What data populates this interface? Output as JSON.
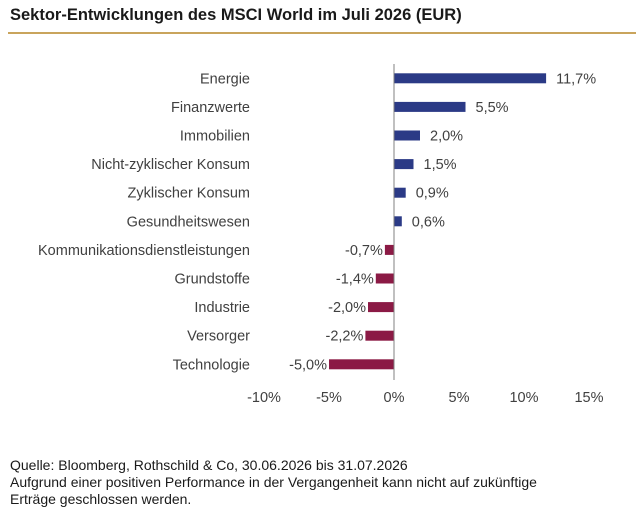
{
  "title": "Sektor-Entwicklungen des MSCI World im Juli 2026 (EUR)",
  "colors": {
    "positive": "#2B3A86",
    "negative": "#8B1A45",
    "title_rule": "#C9A45C",
    "axis": "#808080"
  },
  "chart_data": {
    "type": "bar",
    "orientation": "horizontal",
    "title": "Sektor-Entwicklungen des MSCI World im Juli 2026 (EUR)",
    "categories": [
      "Energie",
      "Finanzwerte",
      "Immobilien",
      "Nicht-zyklischer Konsum",
      "Zyklischer Konsum",
      "Gesundheitswesen",
      "Kommunikationsdienstleistungen",
      "Grundstoffe",
      "Industrie",
      "Versorger",
      "Technologie"
    ],
    "values": [
      11.7,
      5.5,
      2.0,
      1.5,
      0.9,
      0.6,
      -0.7,
      -1.4,
      -2.0,
      -2.2,
      -5.0
    ],
    "value_labels": [
      "11,7%",
      "5,5%",
      "2,0%",
      "1,5%",
      "0,9%",
      "0,6%",
      "-0,7%",
      "-1,4%",
      "-2,0%",
      "-2,2%",
      "-5,0%"
    ],
    "xlim": [
      -10,
      15
    ],
    "xticks": [
      -10,
      -5,
      0,
      5,
      10,
      15
    ],
    "xtick_labels": [
      "-10%",
      "-5%",
      "0%",
      "5%",
      "10%",
      "15%"
    ],
    "xlabel": "",
    "ylabel": "",
    "grid": false,
    "legend": "none"
  },
  "footer": {
    "source": "Quelle: Bloomberg, Rothschild & Co, 30.06.2026 bis 31.07.2026",
    "disclaimer_line1": "Aufgrund einer positiven Performance in der Vergangenheit kann nicht auf zukünftige",
    "disclaimer_line2": "Erträge geschlossen werden."
  }
}
